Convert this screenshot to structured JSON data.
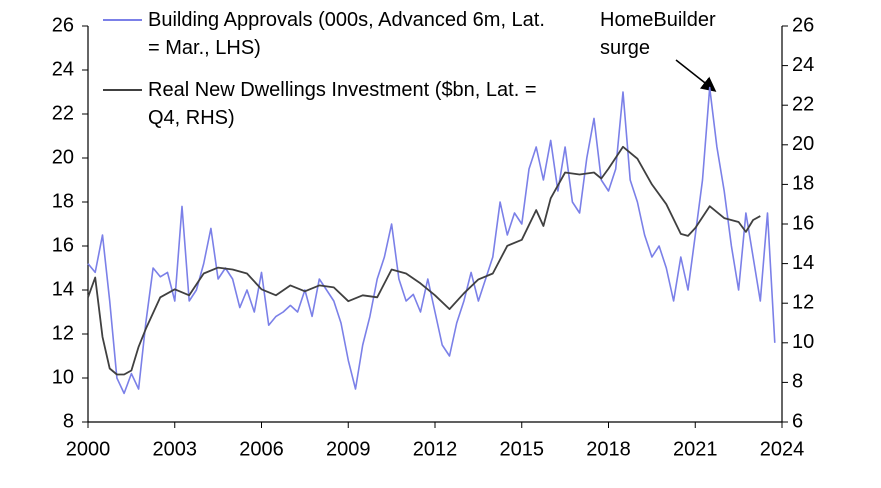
{
  "chart_data": {
    "type": "line",
    "annotation": "HomeBuilder surge",
    "xlim": [
      2000,
      2024
    ],
    "xticks": [
      2000,
      2003,
      2006,
      2009,
      2012,
      2015,
      2018,
      2021,
      2024
    ],
    "ylim": [
      8,
      26
    ],
    "yticks": [
      8,
      10,
      12,
      14,
      16,
      18,
      20,
      22,
      24,
      26
    ],
    "y2lim": [
      6,
      26
    ],
    "y2ticks": [
      6,
      8,
      10,
      12,
      14,
      16,
      18,
      20,
      22,
      24,
      26
    ],
    "grid": false,
    "legend": "top-left",
    "series": [
      {
        "name": "Building Approvals (000s, Advanced 6m, Lat. = Mar., LHS)",
        "color": "#7b80e8",
        "axis": "y",
        "x": [
          2000,
          2000.25,
          2000.5,
          2000.75,
          2001,
          2001.25,
          2001.5,
          2001.75,
          2002,
          2002.25,
          2002.5,
          2002.75,
          2003,
          2003.25,
          2003.5,
          2003.75,
          2004,
          2004.25,
          2004.5,
          2004.75,
          2005,
          2005.25,
          2005.5,
          2005.75,
          2006,
          2006.25,
          2006.5,
          2006.75,
          2007,
          2007.25,
          2007.5,
          2007.75,
          2008,
          2008.25,
          2008.5,
          2008.75,
          2009,
          2009.25,
          2009.5,
          2009.75,
          2010,
          2010.25,
          2010.5,
          2010.75,
          2011,
          2011.25,
          2011.5,
          2011.75,
          2012,
          2012.25,
          2012.5,
          2012.75,
          2013,
          2013.25,
          2013.5,
          2013.75,
          2014,
          2014.25,
          2014.5,
          2014.75,
          2015,
          2015.25,
          2015.5,
          2015.75,
          2016,
          2016.25,
          2016.5,
          2016.75,
          2017,
          2017.25,
          2017.5,
          2017.75,
          2018,
          2018.25,
          2018.5,
          2018.75,
          2019,
          2019.25,
          2019.5,
          2019.75,
          2020,
          2020.25,
          2020.5,
          2020.75,
          2021,
          2021.25,
          2021.5,
          2021.75,
          2022,
          2022.25,
          2022.5,
          2022.75,
          2023,
          2023.25,
          2023.5,
          2023.75
        ],
        "values": [
          15.2,
          14.8,
          16.5,
          13.5,
          10.0,
          9.3,
          10.2,
          9.5,
          12.5,
          15.0,
          14.6,
          14.8,
          13.5,
          17.8,
          13.5,
          14.0,
          15.2,
          16.8,
          14.5,
          15.0,
          14.5,
          13.2,
          14.0,
          13.0,
          14.8,
          12.4,
          12.8,
          13.0,
          13.3,
          13.0,
          14.0,
          12.8,
          14.5,
          14.0,
          13.5,
          12.5,
          10.8,
          9.5,
          11.5,
          12.8,
          14.5,
          15.5,
          17.0,
          14.5,
          13.5,
          13.8,
          13.0,
          14.5,
          13.0,
          11.5,
          11.0,
          12.5,
          13.5,
          14.8,
          13.5,
          14.5,
          15.5,
          18.0,
          16.5,
          17.5,
          17.0,
          19.5,
          20.5,
          19.0,
          20.8,
          18.5,
          20.5,
          18.0,
          17.5,
          20.0,
          21.8,
          19.0,
          18.5,
          19.5,
          23.0,
          19.0,
          18.0,
          16.5,
          15.5,
          16.0,
          15.0,
          13.5,
          15.5,
          14.0,
          16.5,
          19.0,
          23.2,
          20.5,
          18.5,
          16.0,
          14.0,
          17.5,
          15.5,
          13.5,
          17.5,
          11.6
        ]
      },
      {
        "name": "Real New Dwellings Investment ($bn, Lat. = Q4, RHS)",
        "color": "#404040",
        "axis": "y2",
        "x": [
          2000,
          2000.25,
          2000.5,
          2000.75,
          2001,
          2001.25,
          2001.5,
          2001.75,
          2002,
          2002.5,
          2003,
          2003.5,
          2004,
          2004.5,
          2005,
          2005.5,
          2006,
          2006.5,
          2007,
          2007.5,
          2008,
          2008.5,
          2009,
          2009.5,
          2010,
          2010.5,
          2011,
          2011.5,
          2012,
          2012.5,
          2013,
          2013.5,
          2014,
          2014.5,
          2015,
          2015.5,
          2015.75,
          2016,
          2016.5,
          2017,
          2017.5,
          2017.75,
          2018,
          2018.5,
          2019,
          2019.5,
          2020,
          2020.5,
          2020.75,
          2021,
          2021.5,
          2022,
          2022.5,
          2022.75,
          2023,
          2023.25
        ],
        "values": [
          12.3,
          13.3,
          10.3,
          8.7,
          8.4,
          8.4,
          8.6,
          9.8,
          10.7,
          12.3,
          12.7,
          12.4,
          13.5,
          13.8,
          13.7,
          13.5,
          12.7,
          12.4,
          12.9,
          12.6,
          12.9,
          12.8,
          12.1,
          12.4,
          12.3,
          13.7,
          13.5,
          13.0,
          12.4,
          11.7,
          12.5,
          13.2,
          13.5,
          14.9,
          15.2,
          16.7,
          15.9,
          17.3,
          18.6,
          18.5,
          18.6,
          18.3,
          18.8,
          19.9,
          19.3,
          18.0,
          17.0,
          15.5,
          15.4,
          15.8,
          16.9,
          16.3,
          16.1,
          15.6,
          16.2,
          16.4
        ]
      }
    ]
  }
}
